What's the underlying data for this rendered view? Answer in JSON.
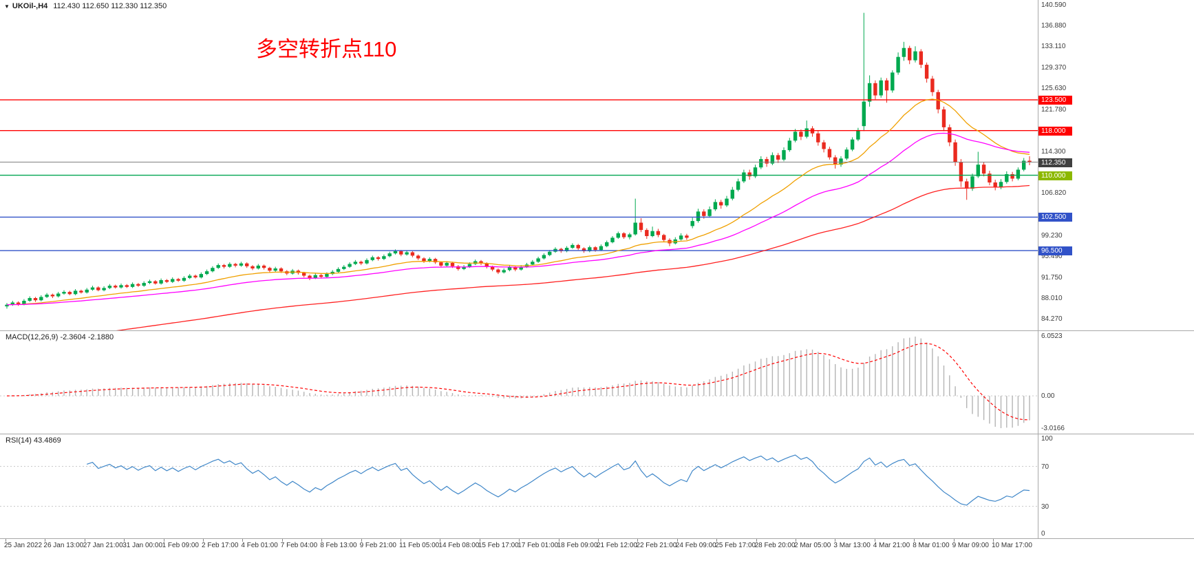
{
  "header": {
    "dropdown_icon": "▼",
    "symbol": "UKOil-,H4",
    "ohlc": "112.430 112.650 112.330 112.350"
  },
  "annotation": {
    "text": "多空转折点110",
    "color": "#ff0000"
  },
  "panes": {
    "macd_label": "MACD(12,26,9) -2.3604 -2.1880",
    "rsi_label": "RSI(14) 43.4869"
  },
  "chart_data": {
    "type": "candlestick",
    "title": "UKOil-,H4",
    "main": {
      "ylim": [
        82.2,
        141.4
      ],
      "up_color": "#00a94f",
      "down_color": "#ea2a1f",
      "price_ticks": [
        {
          "v": 140.59,
          "t": "140.590"
        },
        {
          "v": 136.88,
          "t": "136.880"
        },
        {
          "v": 133.11,
          "t": "133.110"
        },
        {
          "v": 129.37,
          "t": "129.370"
        },
        {
          "v": 125.63,
          "t": "125.630"
        },
        {
          "v": 121.78,
          "t": "121.780"
        },
        {
          "v": 114.3,
          "t": "114.300"
        },
        {
          "v": 106.82,
          "t": "106.820"
        },
        {
          "v": 99.23,
          "t": "99.230"
        },
        {
          "v": 95.49,
          "t": "95.490"
        },
        {
          "v": 91.75,
          "t": "91.750"
        },
        {
          "v": 88.01,
          "t": "88.010"
        },
        {
          "v": 84.27,
          "t": "84.270"
        }
      ],
      "levels": [
        {
          "v": 123.5,
          "label": "123.500",
          "color": "#ff0000",
          "badge": "#ff0000"
        },
        {
          "v": 118.0,
          "label": "118.000",
          "color": "#ff0000",
          "badge": "#ff0000"
        },
        {
          "v": 110.0,
          "label": "110.000",
          "color": "#00a651",
          "badge": "#8cb800"
        },
        {
          "v": 102.5,
          "label": "102.500",
          "color": "#3152c8",
          "badge": "#3152c8"
        },
        {
          "v": 96.5,
          "label": "96.500",
          "color": "#3152c8",
          "badge": "#3152c8"
        }
      ],
      "current_price": {
        "v": 112.35,
        "label": "112.350",
        "line_color": "#7f7f7f",
        "badge": "#404040"
      },
      "overlays": [
        {
          "name": "ma-fast-line",
          "type": "ema",
          "period": 22,
          "color": "#f0a000"
        },
        {
          "name": "ma-mid-line",
          "type": "ema",
          "period": 45,
          "color": "#ff00ff"
        },
        {
          "name": "ma-slow-line",
          "type": "ema-seeded",
          "alpha": 0.018,
          "seed": 79.2,
          "color": "#ff2020"
        }
      ],
      "candles": [
        [
          86.5,
          87.1,
          86.1,
          86.8
        ],
        [
          86.8,
          87.5,
          86.6,
          87.2
        ],
        [
          87.2,
          87.4,
          86.6,
          86.9
        ],
        [
          86.9,
          87.8,
          86.7,
          87.5
        ],
        [
          87.5,
          88.3,
          87.3,
          88.0
        ],
        [
          88.0,
          88.2,
          87.3,
          87.6
        ],
        [
          87.6,
          88.5,
          87.4,
          88.2
        ],
        [
          88.2,
          88.9,
          88.0,
          88.6
        ],
        [
          88.6,
          88.8,
          88.0,
          88.3
        ],
        [
          88.3,
          89.1,
          88.1,
          88.8
        ],
        [
          88.8,
          89.4,
          88.6,
          89.1
        ],
        [
          89.1,
          89.3,
          88.5,
          88.7
        ],
        [
          88.7,
          89.6,
          88.5,
          89.3
        ],
        [
          89.3,
          89.5,
          88.8,
          89.0
        ],
        [
          89.0,
          89.8,
          88.8,
          89.5
        ],
        [
          89.5,
          90.2,
          89.3,
          89.9
        ],
        [
          89.9,
          90.1,
          89.2,
          89.4
        ],
        [
          89.4,
          90.1,
          89.2,
          89.8
        ],
        [
          89.8,
          90.5,
          89.6,
          90.2
        ],
        [
          90.2,
          90.4,
          89.7,
          89.9
        ],
        [
          89.9,
          90.6,
          89.7,
          90.3
        ],
        [
          90.3,
          90.5,
          89.8,
          90.0
        ],
        [
          90.0,
          90.8,
          89.8,
          90.5
        ],
        [
          90.5,
          90.7,
          90.0,
          90.2
        ],
        [
          90.2,
          91.0,
          90.0,
          90.7
        ],
        [
          90.7,
          91.3,
          90.5,
          91.0
        ],
        [
          91.0,
          91.2,
          90.4,
          90.6
        ],
        [
          90.6,
          91.5,
          90.4,
          91.2
        ],
        [
          91.2,
          91.4,
          90.7,
          90.9
        ],
        [
          90.9,
          91.7,
          90.7,
          91.4
        ],
        [
          91.4,
          91.6,
          90.9,
          91.1
        ],
        [
          91.1,
          91.9,
          90.9,
          91.6
        ],
        [
          91.6,
          92.3,
          91.4,
          92.0
        ],
        [
          92.0,
          92.2,
          91.5,
          91.7
        ],
        [
          91.7,
          92.6,
          91.5,
          92.3
        ],
        [
          92.3,
          93.1,
          92.1,
          92.8
        ],
        [
          92.8,
          93.7,
          92.6,
          93.4
        ],
        [
          93.4,
          94.2,
          93.2,
          93.9
        ],
        [
          93.9,
          94.1,
          93.3,
          93.6
        ],
        [
          93.6,
          94.4,
          93.4,
          94.1
        ],
        [
          94.1,
          94.3,
          93.5,
          93.8
        ],
        [
          93.8,
          94.5,
          93.6,
          94.2
        ],
        [
          94.2,
          94.4,
          93.4,
          93.7
        ],
        [
          93.7,
          93.9,
          93.0,
          93.3
        ],
        [
          93.3,
          94.1,
          93.1,
          93.8
        ],
        [
          93.8,
          94.0,
          93.1,
          93.4
        ],
        [
          93.4,
          93.6,
          92.6,
          92.9
        ],
        [
          92.9,
          93.6,
          92.7,
          93.3
        ],
        [
          93.3,
          93.5,
          92.5,
          92.8
        ],
        [
          92.8,
          93.0,
          92.1,
          92.4
        ],
        [
          92.4,
          93.2,
          92.2,
          92.9
        ],
        [
          92.9,
          93.1,
          92.2,
          92.5
        ],
        [
          92.5,
          92.7,
          91.7,
          92.0
        ],
        [
          92.0,
          92.2,
          91.2,
          91.6
        ],
        [
          91.6,
          92.4,
          91.4,
          92.1
        ],
        [
          92.1,
          92.3,
          91.5,
          91.8
        ],
        [
          91.8,
          92.6,
          91.6,
          92.3
        ],
        [
          92.3,
          93.0,
          92.1,
          92.7
        ],
        [
          92.7,
          93.5,
          92.5,
          93.2
        ],
        [
          93.2,
          93.9,
          93.0,
          93.6
        ],
        [
          93.6,
          94.4,
          93.4,
          94.1
        ],
        [
          94.1,
          94.8,
          93.9,
          94.5
        ],
        [
          94.5,
          94.7,
          93.9,
          94.2
        ],
        [
          94.2,
          95.1,
          94.0,
          94.8
        ],
        [
          94.8,
          95.6,
          94.6,
          95.3
        ],
        [
          95.3,
          95.5,
          94.7,
          95.0
        ],
        [
          95.0,
          95.8,
          94.8,
          95.5
        ],
        [
          95.5,
          96.3,
          95.3,
          96.0
        ],
        [
          96.0,
          96.7,
          95.8,
          96.4
        ],
        [
          96.4,
          96.6,
          95.5,
          95.8
        ],
        [
          95.8,
          96.5,
          95.6,
          96.2
        ],
        [
          96.2,
          96.4,
          95.3,
          95.6
        ],
        [
          95.6,
          95.8,
          94.8,
          95.1
        ],
        [
          95.1,
          95.3,
          94.3,
          94.6
        ],
        [
          94.6,
          95.3,
          94.4,
          95.0
        ],
        [
          95.0,
          95.2,
          94.1,
          94.4
        ],
        [
          94.4,
          94.6,
          93.5,
          93.8
        ],
        [
          93.8,
          94.6,
          93.6,
          94.3
        ],
        [
          94.3,
          94.5,
          93.4,
          93.7
        ],
        [
          93.7,
          93.9,
          92.9,
          93.2
        ],
        [
          93.2,
          93.9,
          93.0,
          93.6
        ],
        [
          93.6,
          94.4,
          93.4,
          94.1
        ],
        [
          94.1,
          94.9,
          93.9,
          94.6
        ],
        [
          94.6,
          94.8,
          93.9,
          94.2
        ],
        [
          94.2,
          94.4,
          93.3,
          93.6
        ],
        [
          93.6,
          93.8,
          92.8,
          93.1
        ],
        [
          93.1,
          93.3,
          92.3,
          92.6
        ],
        [
          92.6,
          93.3,
          92.4,
          93.0
        ],
        [
          93.0,
          93.8,
          92.8,
          93.5
        ],
        [
          93.5,
          93.7,
          92.8,
          93.1
        ],
        [
          93.1,
          93.9,
          92.9,
          93.6
        ],
        [
          93.6,
          94.3,
          93.4,
          94.0
        ],
        [
          94.0,
          94.8,
          93.8,
          94.5
        ],
        [
          94.5,
          95.4,
          94.3,
          95.1
        ],
        [
          95.1,
          96.0,
          94.9,
          95.7
        ],
        [
          95.7,
          96.6,
          95.5,
          96.3
        ],
        [
          96.3,
          97.1,
          96.1,
          96.8
        ],
        [
          96.8,
          97.0,
          96.1,
          96.4
        ],
        [
          96.4,
          97.3,
          96.2,
          97.0
        ],
        [
          97.0,
          97.8,
          96.8,
          97.5
        ],
        [
          97.5,
          97.7,
          96.6,
          96.9
        ],
        [
          96.9,
          97.1,
          96.1,
          96.4
        ],
        [
          96.4,
          97.4,
          96.2,
          97.1
        ],
        [
          97.1,
          97.3,
          96.3,
          96.6
        ],
        [
          96.6,
          97.6,
          96.4,
          97.3
        ],
        [
          97.3,
          98.3,
          97.1,
          98.0
        ],
        [
          98.0,
          99.1,
          97.8,
          98.8
        ],
        [
          98.8,
          99.9,
          98.6,
          99.6
        ],
        [
          99.6,
          99.8,
          98.6,
          98.9
        ],
        [
          98.9,
          99.7,
          98.5,
          99.4
        ],
        [
          99.4,
          105.8,
          99.2,
          101.5
        ],
        [
          101.5,
          102.3,
          99.8,
          100.2
        ],
        [
          100.2,
          100.5,
          98.6,
          99.1
        ],
        [
          99.1,
          100.8,
          98.9,
          100.0
        ],
        [
          100.0,
          100.4,
          98.9,
          99.3
        ],
        [
          99.3,
          99.5,
          98.0,
          98.4
        ],
        [
          98.4,
          98.7,
          97.3,
          97.8
        ],
        [
          97.8,
          98.9,
          97.6,
          98.5
        ],
        [
          98.5,
          99.6,
          98.3,
          99.2
        ],
        [
          99.2,
          99.5,
          98.4,
          98.8
        ],
        [
          100.9,
          102.4,
          100.5,
          101.8
        ],
        [
          101.8,
          104.0,
          101.5,
          103.5
        ],
        [
          103.5,
          103.9,
          102.2,
          102.7
        ],
        [
          102.7,
          104.4,
          102.4,
          103.9
        ],
        [
          103.9,
          105.7,
          103.6,
          105.2
        ],
        [
          105.2,
          105.6,
          104.0,
          104.6
        ],
        [
          104.6,
          106.3,
          104.3,
          105.8
        ],
        [
          105.8,
          107.9,
          105.5,
          107.4
        ],
        [
          107.4,
          109.4,
          107.1,
          108.9
        ],
        [
          108.9,
          111.0,
          108.6,
          110.5
        ],
        [
          110.5,
          111.0,
          109.2,
          109.8
        ],
        [
          109.8,
          111.9,
          109.5,
          111.4
        ],
        [
          111.4,
          113.4,
          111.1,
          112.9
        ],
        [
          112.9,
          113.3,
          111.5,
          112.1
        ],
        [
          112.1,
          114.1,
          111.8,
          113.6
        ],
        [
          113.6,
          114.0,
          112.2,
          112.8
        ],
        [
          112.8,
          115.0,
          112.5,
          114.5
        ],
        [
          114.5,
          116.7,
          114.2,
          116.2
        ],
        [
          116.2,
          118.3,
          115.9,
          117.8
        ],
        [
          117.8,
          118.2,
          116.3,
          116.9
        ],
        [
          116.9,
          119.8,
          116.6,
          118.4
        ],
        [
          118.4,
          118.8,
          116.9,
          117.5
        ],
        [
          117.5,
          117.9,
          115.3,
          115.9
        ],
        [
          115.9,
          116.3,
          114.1,
          114.7
        ],
        [
          114.7,
          115.1,
          112.8,
          113.2
        ],
        [
          113.2,
          113.6,
          111.2,
          111.9
        ],
        [
          111.9,
          113.4,
          111.5,
          113.0
        ],
        [
          113.0,
          115.0,
          112.7,
          114.6
        ],
        [
          114.6,
          116.8,
          114.3,
          116.4
        ],
        [
          116.4,
          118.5,
          116.1,
          118.1
        ],
        [
          118.8,
          139.1,
          117.9,
          123.2
        ],
        [
          123.2,
          127.9,
          122.3,
          126.5
        ],
        [
          126.5,
          127.0,
          123.6,
          124.3
        ],
        [
          124.3,
          127.5,
          123.9,
          127.0
        ],
        [
          127.0,
          127.4,
          123.0,
          125.2
        ],
        [
          125.2,
          128.8,
          124.8,
          128.4
        ],
        [
          128.4,
          132.0,
          128.0,
          131.2
        ],
        [
          131.2,
          133.9,
          130.5,
          132.8
        ],
        [
          132.8,
          133.2,
          129.9,
          130.6
        ],
        [
          130.6,
          133.1,
          130.2,
          132.2
        ],
        [
          132.2,
          132.6,
          129.2,
          129.8
        ],
        [
          129.8,
          130.2,
          126.6,
          127.3
        ],
        [
          127.3,
          127.8,
          124.2,
          124.9
        ],
        [
          124.9,
          125.3,
          121.1,
          121.8
        ],
        [
          121.8,
          122.3,
          117.9,
          118.6
        ],
        [
          118.6,
          119.1,
          115.2,
          115.9
        ],
        [
          115.9,
          116.4,
          111.7,
          112.4
        ],
        [
          112.4,
          112.9,
          107.9,
          108.9
        ],
        [
          108.9,
          109.4,
          105.6,
          107.6
        ],
        [
          107.6,
          110.3,
          107.2,
          109.8
        ],
        [
          109.8,
          114.2,
          109.5,
          111.9
        ],
        [
          111.9,
          112.4,
          109.8,
          110.3
        ],
        [
          110.3,
          110.8,
          108.2,
          108.7
        ],
        [
          108.7,
          109.2,
          107.3,
          107.9
        ],
        [
          107.9,
          109.3,
          107.5,
          108.8
        ],
        [
          108.8,
          110.7,
          108.5,
          110.2
        ],
        [
          110.2,
          110.6,
          108.9,
          109.4
        ],
        [
          109.4,
          111.4,
          109.1,
          111.0
        ],
        [
          111.0,
          113.1,
          110.7,
          112.6
        ],
        [
          112.6,
          113.4,
          111.8,
          112.35
        ]
      ]
    },
    "macd": {
      "fast": 12,
      "slow": 26,
      "signal_period": 9,
      "values_label": [
        "-2.3604",
        "-2.1880"
      ],
      "hist_color": "#b4b4b4",
      "signal_color": "#ff0000",
      "ticks": [
        {
          "v": 6.0523,
          "t": "6.0523"
        },
        {
          "v": 0,
          "t": "0.00"
        },
        {
          "v": -3.0166,
          "t": "-3.0166"
        }
      ]
    },
    "rsi": {
      "period": 14,
      "value_label": "43.4869",
      "ylim": [
        -2,
        102
      ],
      "levels": [
        30,
        70
      ],
      "color": "#3e86c8",
      "ticks": [
        {
          "v": 100,
          "t": "100"
        },
        {
          "v": 70,
          "t": "70"
        },
        {
          "v": 30,
          "t": "30"
        },
        {
          "v": 0,
          "t": "0"
        }
      ]
    },
    "x_labels": [
      "25 Jan 2022",
      "26 Jan 13:00",
      "27 Jan 21:00",
      "31 Jan 00:00",
      "1 Feb 09:00",
      "2 Feb 17:00",
      "4 Feb 01:00",
      "7 Feb 04:00",
      "8 Feb 13:00",
      "9 Feb 21:00",
      "11 Feb 05:00",
      "14 Feb 08:00",
      "15 Feb 17:00",
      "17 Feb 01:00",
      "18 Feb 09:00",
      "21 Feb 12:00",
      "22 Feb 21:00",
      "24 Feb 09:00",
      "25 Feb 17:00",
      "28 Feb 20:00",
      "2 Mar 05:00",
      "3 Mar 13:00",
      "4 Mar 21:00",
      "8 Mar 01:00",
      "9 Mar 09:00",
      "10 Mar 17:00"
    ]
  }
}
